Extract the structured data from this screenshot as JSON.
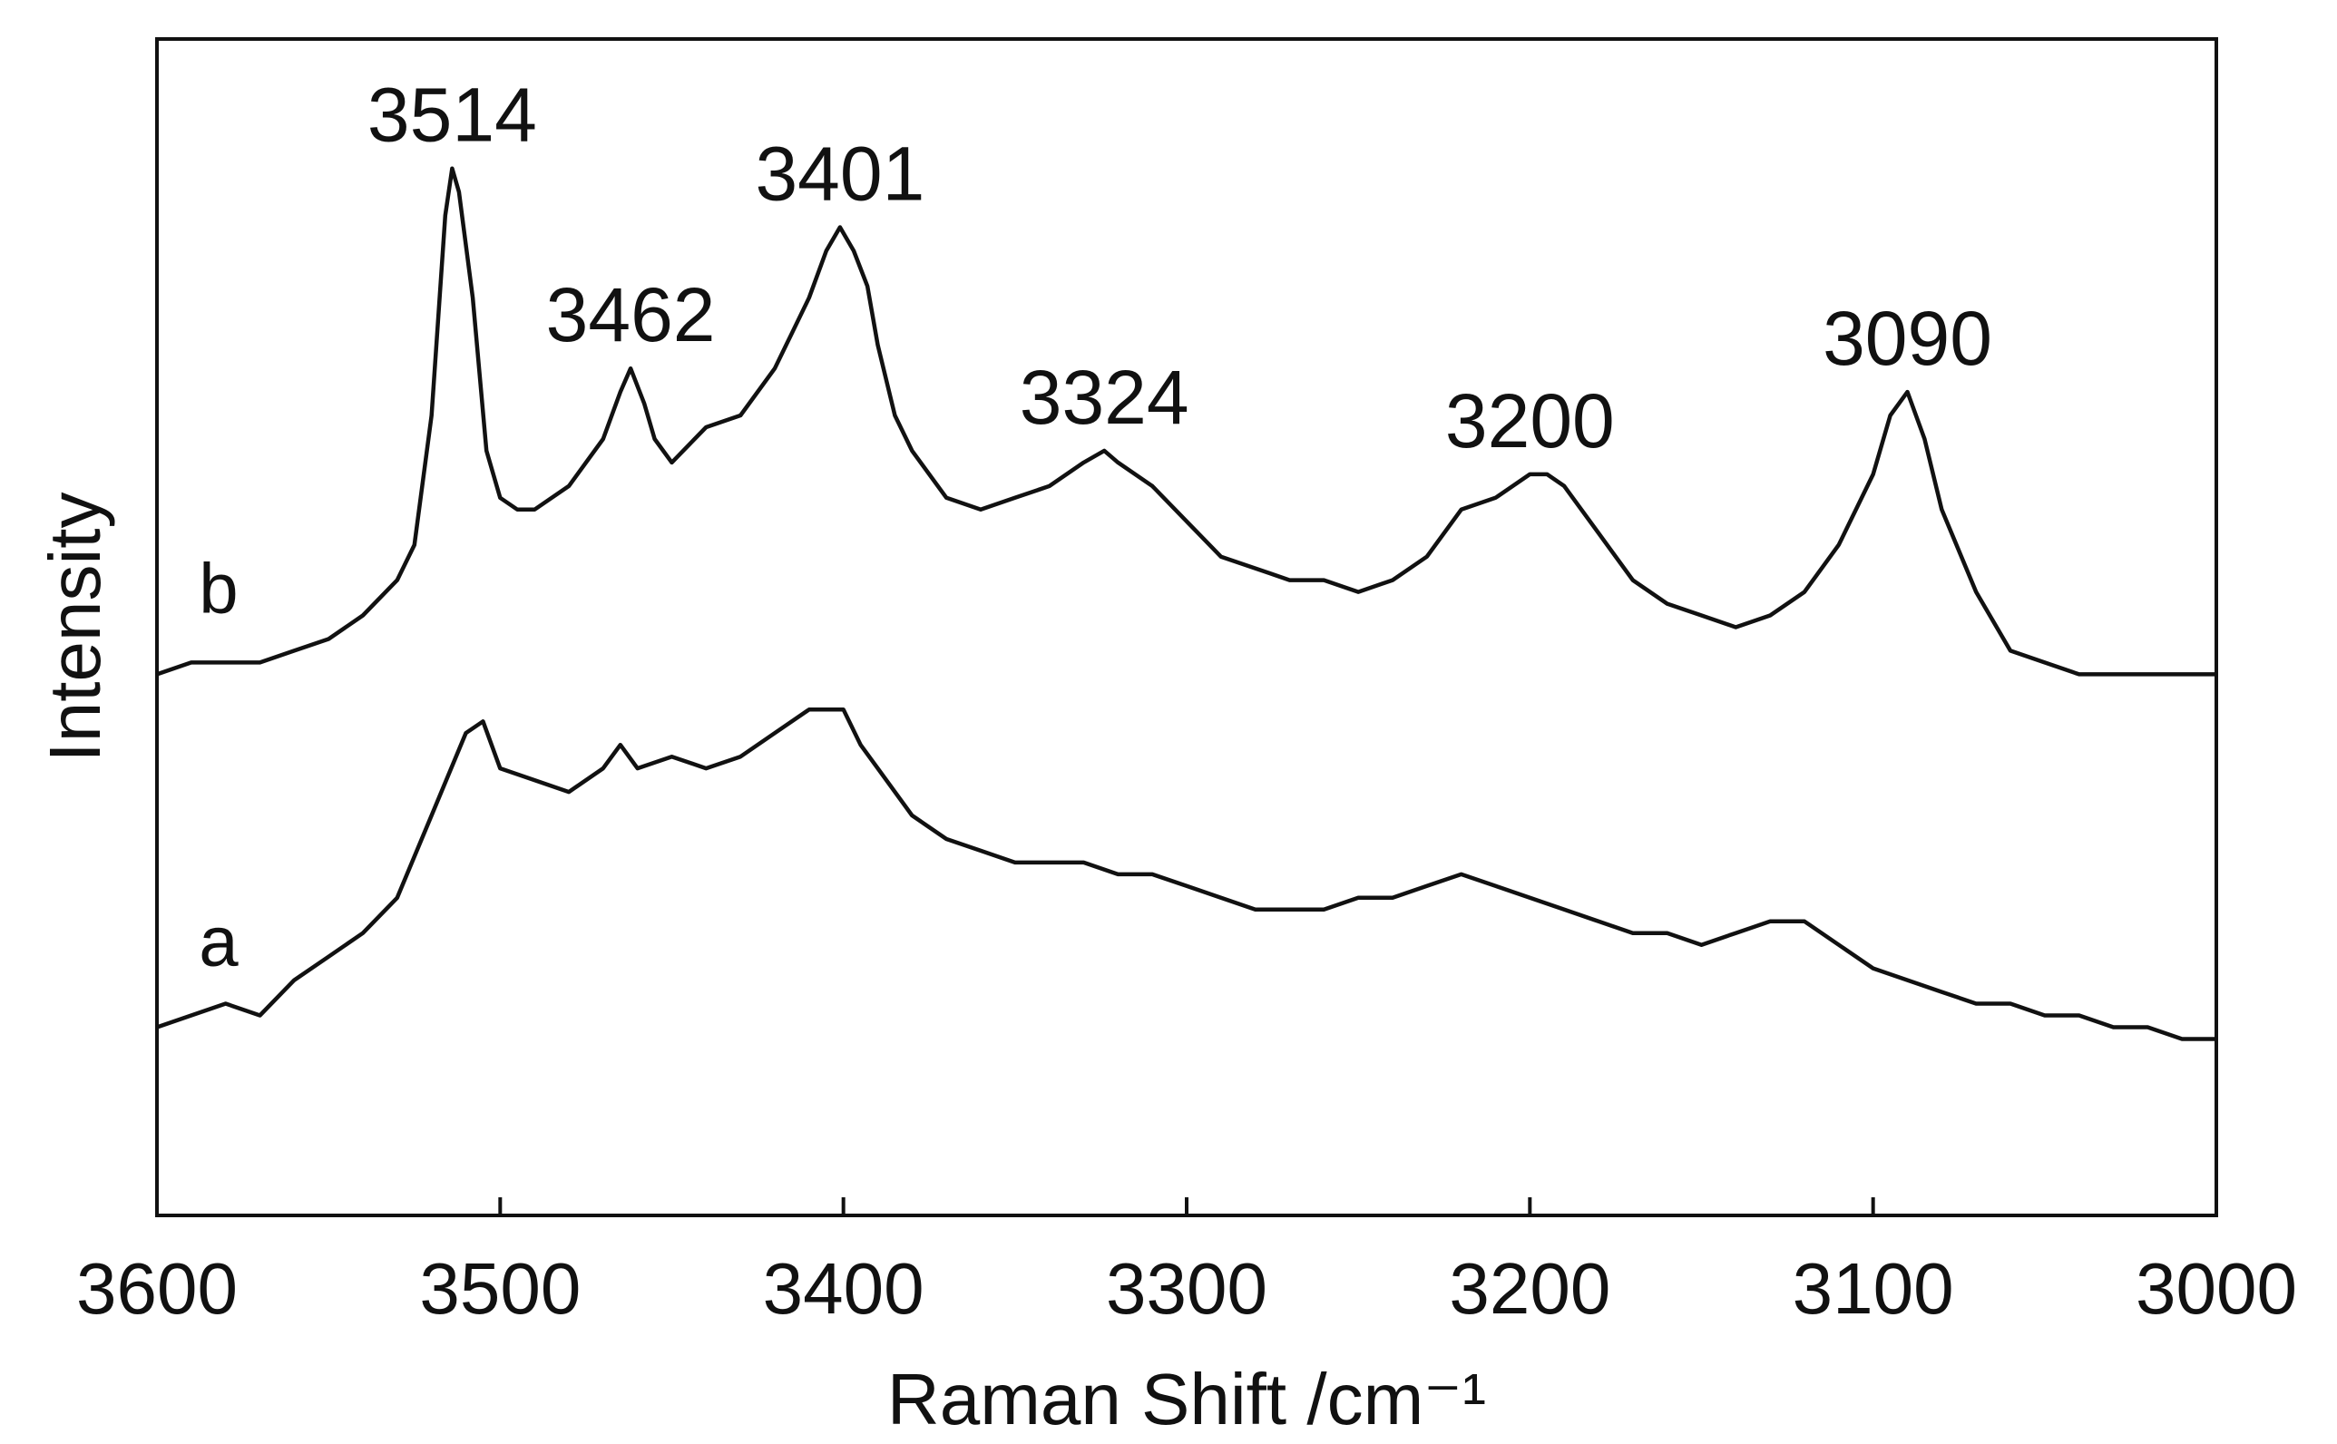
{
  "chart_data": {
    "type": "line",
    "title": "",
    "xlabel": "Raman Shift /cm⁻¹",
    "ylabel": "Intensity",
    "xlim": [
      3600,
      3000
    ],
    "x_reversed": true,
    "ylim": [
      0,
      1
    ],
    "y_ticks_shown": false,
    "grid": false,
    "xticks": [
      3600,
      3500,
      3400,
      3300,
      3200,
      3100,
      3000
    ],
    "line_color": "#111111",
    "series": [
      {
        "name": "a",
        "x": [
          3600,
          3590,
          3580,
          3570,
          3560,
          3550,
          3540,
          3530,
          3520,
          3510,
          3505,
          3500,
          3490,
          3480,
          3470,
          3465,
          3460,
          3450,
          3440,
          3430,
          3420,
          3410,
          3400,
          3395,
          3390,
          3380,
          3370,
          3360,
          3350,
          3340,
          3330,
          3320,
          3310,
          3300,
          3290,
          3280,
          3270,
          3260,
          3250,
          3240,
          3230,
          3220,
          3210,
          3200,
          3190,
          3180,
          3170,
          3160,
          3150,
          3140,
          3130,
          3120,
          3110,
          3100,
          3090,
          3080,
          3070,
          3060,
          3050,
          3040,
          3030,
          3020,
          3010,
          3000
        ],
        "y": [
          0.16,
          0.17,
          0.18,
          0.17,
          0.2,
          0.22,
          0.24,
          0.27,
          0.34,
          0.41,
          0.42,
          0.38,
          0.37,
          0.36,
          0.38,
          0.4,
          0.38,
          0.39,
          0.38,
          0.39,
          0.41,
          0.43,
          0.43,
          0.4,
          0.38,
          0.34,
          0.32,
          0.31,
          0.3,
          0.3,
          0.3,
          0.29,
          0.29,
          0.28,
          0.27,
          0.26,
          0.26,
          0.26,
          0.27,
          0.27,
          0.28,
          0.29,
          0.28,
          0.27,
          0.26,
          0.25,
          0.24,
          0.24,
          0.23,
          0.24,
          0.25,
          0.25,
          0.23,
          0.21,
          0.2,
          0.19,
          0.18,
          0.18,
          0.17,
          0.17,
          0.16,
          0.16,
          0.15,
          0.15
        ]
      },
      {
        "name": "b",
        "x": [
          3600,
          3590,
          3580,
          3570,
          3560,
          3550,
          3540,
          3530,
          3525,
          3520,
          3516,
          3514,
          3512,
          3508,
          3504,
          3500,
          3495,
          3490,
          3480,
          3470,
          3465,
          3462,
          3458,
          3455,
          3450,
          3440,
          3430,
          3420,
          3415,
          3410,
          3405,
          3401,
          3397,
          3393,
          3390,
          3385,
          3380,
          3370,
          3360,
          3350,
          3340,
          3330,
          3324,
          3320,
          3310,
          3300,
          3290,
          3280,
          3270,
          3260,
          3250,
          3240,
          3230,
          3220,
          3210,
          3200,
          3195,
          3190,
          3180,
          3170,
          3160,
          3150,
          3140,
          3130,
          3120,
          3110,
          3100,
          3095,
          3090,
          3085,
          3080,
          3070,
          3060,
          3050,
          3040,
          3030,
          3020,
          3010,
          3000
        ],
        "y": [
          0.46,
          0.47,
          0.47,
          0.47,
          0.48,
          0.49,
          0.51,
          0.54,
          0.57,
          0.68,
          0.85,
          0.89,
          0.87,
          0.78,
          0.65,
          0.61,
          0.6,
          0.6,
          0.62,
          0.66,
          0.7,
          0.72,
          0.69,
          0.66,
          0.64,
          0.67,
          0.68,
          0.72,
          0.75,
          0.78,
          0.82,
          0.84,
          0.82,
          0.79,
          0.74,
          0.68,
          0.65,
          0.61,
          0.6,
          0.61,
          0.62,
          0.64,
          0.65,
          0.64,
          0.62,
          0.59,
          0.56,
          0.55,
          0.54,
          0.54,
          0.53,
          0.54,
          0.56,
          0.6,
          0.61,
          0.63,
          0.63,
          0.62,
          0.58,
          0.54,
          0.52,
          0.51,
          0.5,
          0.51,
          0.53,
          0.57,
          0.63,
          0.68,
          0.7,
          0.66,
          0.6,
          0.53,
          0.48,
          0.47,
          0.46,
          0.46,
          0.46,
          0.46,
          0.46
        ]
      }
    ],
    "annotations": [
      {
        "text": "3514",
        "x": 3514,
        "series": "b"
      },
      {
        "text": "3462",
        "x": 3462,
        "series": "b"
      },
      {
        "text": "3401",
        "x": 3401,
        "series": "b"
      },
      {
        "text": "3324",
        "x": 3324,
        "series": "b"
      },
      {
        "text": "3200",
        "x": 3200,
        "series": "b"
      },
      {
        "text": "3090",
        "x": 3090,
        "series": "b"
      }
    ]
  }
}
